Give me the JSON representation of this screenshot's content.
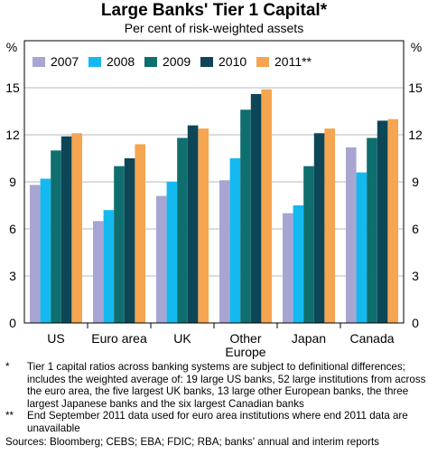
{
  "chart_data": {
    "type": "bar",
    "title": "Large Banks' Tier 1 Capital*",
    "subtitle": "Per cent of risk-weighted assets",
    "y_unit": "%",
    "ylim": [
      0,
      18
    ],
    "yticks": [
      0,
      3,
      6,
      9,
      12,
      15
    ],
    "grid": true,
    "legend_position": "top",
    "categories": [
      "US",
      "Euro area",
      "UK",
      "Other Europe",
      "Japan",
      "Canada"
    ],
    "category_lines": [
      [
        "US"
      ],
      [
        "Euro area"
      ],
      [
        "UK"
      ],
      [
        "Other",
        "Europe"
      ],
      [
        "Japan"
      ],
      [
        "Canada"
      ]
    ],
    "series": [
      {
        "name": "2007",
        "color": "#a7a6d2",
        "values": [
          8.8,
          6.5,
          8.1,
          9.1,
          7.0,
          11.2
        ]
      },
      {
        "name": "2008",
        "color": "#14b9ef",
        "values": [
          9.2,
          7.2,
          9.0,
          10.5,
          7.5,
          9.6
        ]
      },
      {
        "name": "2009",
        "color": "#0f6e6e",
        "values": [
          11.0,
          10.0,
          11.8,
          13.6,
          10.0,
          11.8
        ]
      },
      {
        "name": "2010",
        "color": "#0d4656",
        "values": [
          11.9,
          10.5,
          12.6,
          14.6,
          12.1,
          12.9
        ]
      },
      {
        "name": "2011**",
        "color": "#f6a550",
        "values": [
          12.1,
          11.4,
          12.4,
          14.9,
          12.4,
          13.0
        ]
      }
    ]
  },
  "notes": [
    {
      "mark": "*",
      "text": "Tier 1 capital ratios across banking systems are subject to definitional differences; includes the weighted average of: 19 large US banks, 52 large institutions from across the euro area, the five largest UK banks, 13 large other European banks, the three largest Japanese banks and the six largest Canadian banks"
    },
    {
      "mark": "**",
      "text": "End September 2011 data used for euro area institutions where end 2011 data are unavailable"
    }
  ],
  "sources": "Sources: Bloomberg; CEBS; EBA; FDIC; RBA; banks' annual and interim reports"
}
